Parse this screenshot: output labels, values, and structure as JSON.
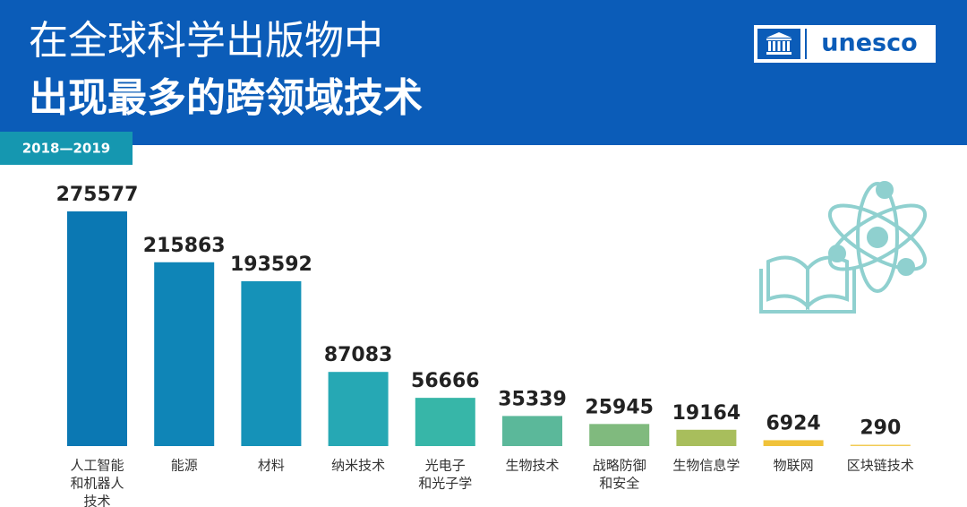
{
  "header": {
    "title_line1": "在全球科学出版物中",
    "title_line2": "出现最多的跨领域技术",
    "period": "2018—2019",
    "logo_text": "unesco"
  },
  "chart_data": {
    "type": "bar",
    "categories": [
      [
        "人工智能",
        "和机器人",
        "技术"
      ],
      [
        "能源"
      ],
      [
        "材料"
      ],
      [
        "纳米技术"
      ],
      [
        "光电子",
        "和光子学"
      ],
      [
        "生物技术"
      ],
      [
        "战略防御",
        "和安全"
      ],
      [
        "生物信息学"
      ],
      [
        "物联网"
      ],
      [
        "区块链技术"
      ]
    ],
    "values": [
      275577,
      215863,
      193592,
      87083,
      56666,
      35339,
      25945,
      19164,
      6924,
      290
    ],
    "colors": [
      "#0b78b3",
      "#0f85b7",
      "#1592b8",
      "#26a8b4",
      "#37b6a8",
      "#5bb89a",
      "#80ba7e",
      "#a8be5c",
      "#f0c23a",
      "#f2cb55"
    ]
  }
}
